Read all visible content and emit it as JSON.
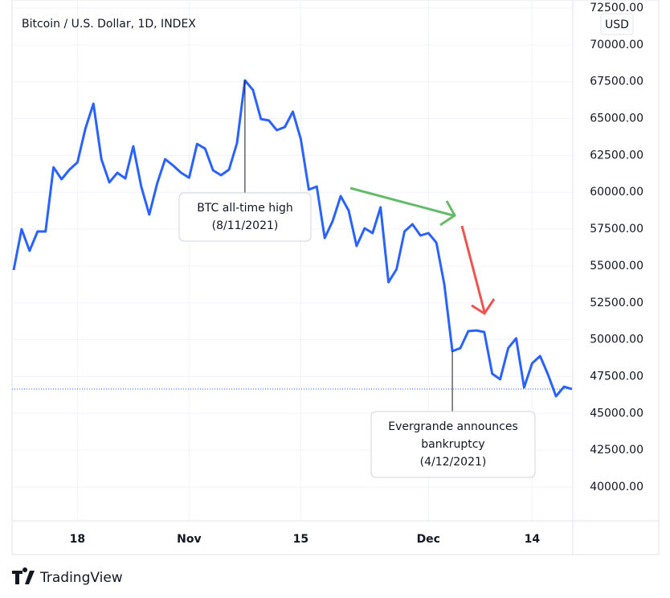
{
  "chart_data": {
    "type": "line",
    "title": "Bitcoin / U.S. Dollar, 1D, INDEX",
    "currency": "USD",
    "brand": "TradingView",
    "x": [
      0,
      1,
      2,
      3,
      4,
      5,
      6,
      7,
      8,
      9,
      10,
      11,
      12,
      13,
      14,
      15,
      16,
      17,
      18,
      19,
      20,
      21,
      22,
      23,
      24,
      25,
      26,
      27,
      28,
      29,
      30,
      31,
      32,
      33,
      34,
      35,
      36,
      37,
      38,
      39,
      40,
      41,
      42,
      43,
      44,
      45,
      46,
      47,
      48,
      49,
      50,
      51,
      52,
      53,
      54,
      55,
      56,
      57,
      58,
      59,
      60,
      61,
      62,
      63,
      64,
      65,
      66,
      67,
      68,
      69,
      70
    ],
    "values": [
      54723,
      57500,
      56030,
      57340,
      57340,
      61700,
      60885,
      61540,
      62030,
      64320,
      66010,
      62250,
      60670,
      61320,
      60940,
      63120,
      60390,
      58490,
      60610,
      62250,
      61810,
      61320,
      60990,
      63280,
      62960,
      61490,
      61160,
      61540,
      63340,
      67590,
      66940,
      64970,
      64870,
      64210,
      64430,
      65470,
      63610,
      60180,
      60390,
      56900,
      58050,
      59740,
      58760,
      56360,
      57560,
      57230,
      58980,
      53900,
      54780,
      57340,
      57830,
      57070,
      57230,
      56580,
      53740,
      49220,
      49430,
      50580,
      50630,
      50520,
      47690,
      47310,
      49430,
      50090,
      46760,
      48400,
      48890,
      47630,
      46160,
      46810,
      46650
    ],
    "color": "#2962ff",
    "xlim": [
      -0.2,
      70.1
    ],
    "xticks": [
      {
        "value": 8,
        "label": "18"
      },
      {
        "value": 22,
        "label": "Nov"
      },
      {
        "value": 36,
        "label": "15"
      },
      {
        "value": 52,
        "label": "Dec"
      },
      {
        "value": 65,
        "label": "14"
      }
    ],
    "ylim": [
      37710,
      73045
    ],
    "yticks": [
      {
        "value": 40000,
        "label": "40000.00"
      },
      {
        "value": 42500,
        "label": "42500.00"
      },
      {
        "value": 45000,
        "label": "45000.00"
      },
      {
        "value": 47500,
        "label": "47500.00"
      },
      {
        "value": 50000,
        "label": "50000.00"
      },
      {
        "value": 52500,
        "label": "52500.00"
      },
      {
        "value": 55000,
        "label": "55000.00"
      },
      {
        "value": 57500,
        "label": "57500.00"
      },
      {
        "value": 60000,
        "label": "60000.00"
      },
      {
        "value": 62500,
        "label": "62500.00"
      },
      {
        "value": 65000,
        "label": "65000.00"
      },
      {
        "value": 67500,
        "label": "67500.00"
      },
      {
        "value": 70000,
        "label": "70000.00"
      },
      {
        "value": 72500,
        "label": "72500.00"
      }
    ],
    "grid": true,
    "annotations": [
      {
        "lines": [
          "BTC all-time high",
          "(8/11/2021)"
        ]
      },
      {
        "lines": [
          "Evergrande announces",
          "bankruptcy",
          "(4/12/2021)"
        ]
      }
    ]
  }
}
